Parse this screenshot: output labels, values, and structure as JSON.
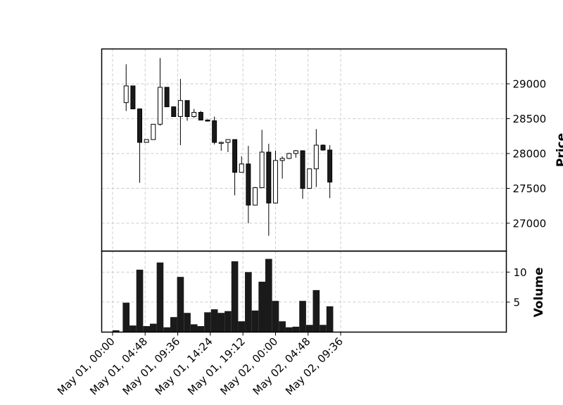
{
  "chart_data": {
    "type": "candlestick",
    "title": "",
    "grid": true,
    "colors": {
      "up_body": "#ffffff",
      "down_body": "#1a1a1a",
      "wick": "#000000",
      "volume": "#1a1a1a",
      "grid": "#cccccc"
    },
    "price_axis": {
      "label": "Price",
      "ylim": [
        26600,
        29500
      ],
      "ticks": [
        "27000",
        "27500",
        "28000",
        "28500",
        "29000"
      ],
      "position": "right"
    },
    "volume_axis": {
      "label": "Volume",
      "ylim": [
        0,
        13.5
      ],
      "ticks": [
        "5",
        "10"
      ],
      "position": "right"
    },
    "x_range_hours": [
      -1.6,
      58.0
    ],
    "x_ticks": [
      {
        "label": "May 01, 00:00",
        "hour": 0
      },
      {
        "label": "May 01, 04:48",
        "hour": 4.8
      },
      {
        "label": "May 01, 09:36",
        "hour": 9.6
      },
      {
        "label": "May 01, 14:24",
        "hour": 14.4
      },
      {
        "label": "May 01, 19:12",
        "hour": 19.2
      },
      {
        "label": "May 02, 00:00",
        "hour": 24
      },
      {
        "label": "May 02, 04:48",
        "hour": 28.8
      },
      {
        "label": "May 02, 09:36",
        "hour": 33.6
      }
    ],
    "volume_extra": [
      {
        "hour": 0.5,
        "volume": 0.3
      }
    ],
    "candles": [
      {
        "hour": 2,
        "open": 28730,
        "high": 29280,
        "low": 28610,
        "close": 28970,
        "volume": 4.9
      },
      {
        "hour": 3,
        "open": 28970,
        "high": 28970,
        "low": 28640,
        "close": 28640,
        "volume": 1.1
      },
      {
        "hour": 4,
        "open": 28640,
        "high": 28640,
        "low": 27580,
        "close": 28160,
        "volume": 10.4
      },
      {
        "hour": 5,
        "open": 28160,
        "high": 28200,
        "low": 28160,
        "close": 28200,
        "volume": 1.0
      },
      {
        "hour": 6,
        "open": 28200,
        "high": 28420,
        "low": 28200,
        "close": 28420,
        "volume": 1.4
      },
      {
        "hour": 7,
        "open": 28420,
        "high": 29370,
        "low": 28400,
        "close": 28950,
        "volume": 11.6
      },
      {
        "hour": 8,
        "open": 28950,
        "high": 28950,
        "low": 28670,
        "close": 28670,
        "volume": 0.8
      },
      {
        "hour": 9,
        "open": 28670,
        "high": 28670,
        "low": 28530,
        "close": 28530,
        "volume": 2.5
      },
      {
        "hour": 10,
        "open": 28530,
        "high": 29070,
        "low": 28120,
        "close": 28760,
        "volume": 9.2
      },
      {
        "hour": 11,
        "open": 28760,
        "high": 28760,
        "low": 28470,
        "close": 28530,
        "volume": 3.2
      },
      {
        "hour": 12,
        "open": 28530,
        "high": 28640,
        "low": 28510,
        "close": 28590,
        "volume": 1.3
      },
      {
        "hour": 13,
        "open": 28590,
        "high": 28610,
        "low": 28480,
        "close": 28480,
        "volume": 1.0
      },
      {
        "hour": 14,
        "open": 28480,
        "high": 28490,
        "low": 28460,
        "close": 28470,
        "volume": 3.3
      },
      {
        "hour": 15,
        "open": 28470,
        "high": 28530,
        "low": 28130,
        "close": 28160,
        "volume": 3.8
      },
      {
        "hour": 16,
        "open": 28160,
        "high": 28170,
        "low": 28040,
        "close": 28160,
        "volume": 3.2
      },
      {
        "hour": 17,
        "open": 28160,
        "high": 28200,
        "low": 28020,
        "close": 28200,
        "volume": 3.5
      },
      {
        "hour": 18,
        "open": 28200,
        "high": 28200,
        "low": 27400,
        "close": 27730,
        "volume": 11.8
      },
      {
        "hour": 19,
        "open": 27730,
        "high": 27960,
        "low": 27730,
        "close": 27850,
        "volume": 1.8
      },
      {
        "hour": 20,
        "open": 27850,
        "high": 28110,
        "low": 27000,
        "close": 27260,
        "volume": 10.0
      },
      {
        "hour": 21,
        "open": 27260,
        "high": 27520,
        "low": 27260,
        "close": 27510,
        "volume": 3.6
      },
      {
        "hour": 22,
        "open": 27510,
        "high": 28340,
        "low": 27510,
        "close": 28020,
        "volume": 8.4
      },
      {
        "hour": 23,
        "open": 28020,
        "high": 28140,
        "low": 26820,
        "close": 27290,
        "volume": 12.2
      },
      {
        "hour": 24,
        "open": 27290,
        "high": 28040,
        "low": 27290,
        "close": 27900,
        "volume": 5.2
      },
      {
        "hour": 25,
        "open": 27900,
        "high": 27960,
        "low": 27640,
        "close": 27930,
        "volume": 1.8
      },
      {
        "hour": 26,
        "open": 27930,
        "high": 28010,
        "low": 27920,
        "close": 28000,
        "volume": 0.8
      },
      {
        "hour": 27,
        "open": 28000,
        "high": 28050,
        "low": 27940,
        "close": 28040,
        "volume": 0.9
      },
      {
        "hour": 28,
        "open": 28040,
        "high": 28040,
        "low": 27350,
        "close": 27500,
        "volume": 5.2
      },
      {
        "hour": 29,
        "open": 27500,
        "high": 27780,
        "low": 27500,
        "close": 27780,
        "volume": 1.2
      },
      {
        "hour": 30,
        "open": 27780,
        "high": 28350,
        "low": 27520,
        "close": 28120,
        "volume": 7.0
      },
      {
        "hour": 31,
        "open": 28120,
        "high": 28130,
        "low": 28040,
        "close": 28050,
        "volume": 1.2
      },
      {
        "hour": 32,
        "open": 28050,
        "high": 28120,
        "low": 27360,
        "close": 27590,
        "volume": 4.3
      }
    ]
  }
}
